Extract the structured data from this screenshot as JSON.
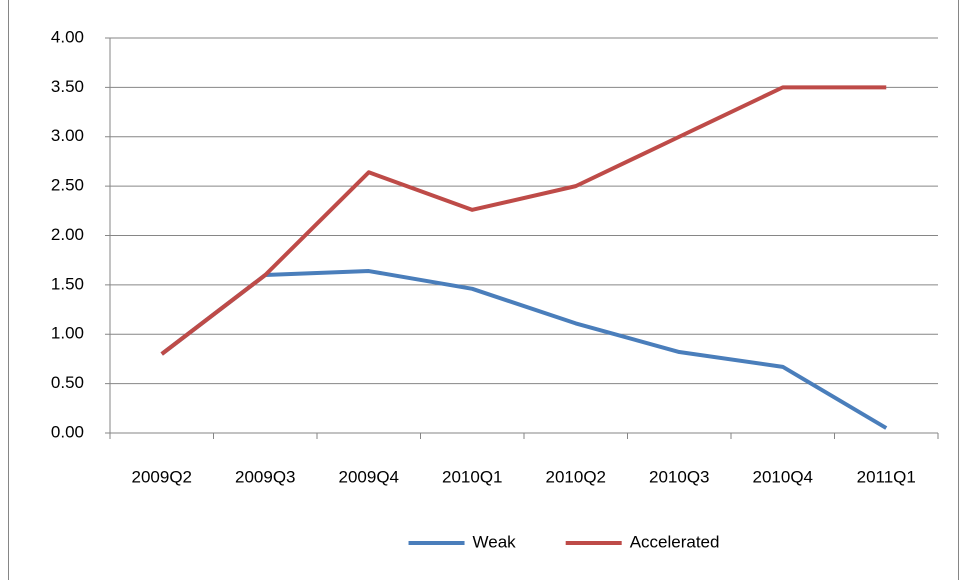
{
  "chart_data": {
    "type": "line",
    "categories": [
      "2009Q2",
      "2009Q3",
      "2009Q4",
      "2010Q1",
      "2010Q2",
      "2010Q3",
      "2010Q4",
      "2011Q1"
    ],
    "series": [
      {
        "name": "Weak",
        "color": "#4a7ebb",
        "values": [
          0.8,
          1.6,
          1.64,
          1.46,
          1.11,
          0.82,
          0.67,
          0.05
        ]
      },
      {
        "name": "Accelerated",
        "color": "#be4b48",
        "values": [
          0.8,
          1.6,
          2.64,
          2.26,
          2.5,
          3.0,
          3.5,
          3.5
        ]
      }
    ],
    "ylim": [
      0,
      4
    ],
    "yticks": [
      {
        "value": 0,
        "label": "0.00"
      },
      {
        "value": 0.5,
        "label": "0.50"
      },
      {
        "value": 1,
        "label": "1.00"
      },
      {
        "value": 1.5,
        "label": "1.50"
      },
      {
        "value": 2,
        "label": "2.00"
      },
      {
        "value": 2.5,
        "label": "2.50"
      },
      {
        "value": 3,
        "label": "3.00"
      },
      {
        "value": 3.5,
        "label": "3.50"
      },
      {
        "value": 4,
        "label": "4.00"
      }
    ],
    "grid": true,
    "legend": "bottom"
  }
}
